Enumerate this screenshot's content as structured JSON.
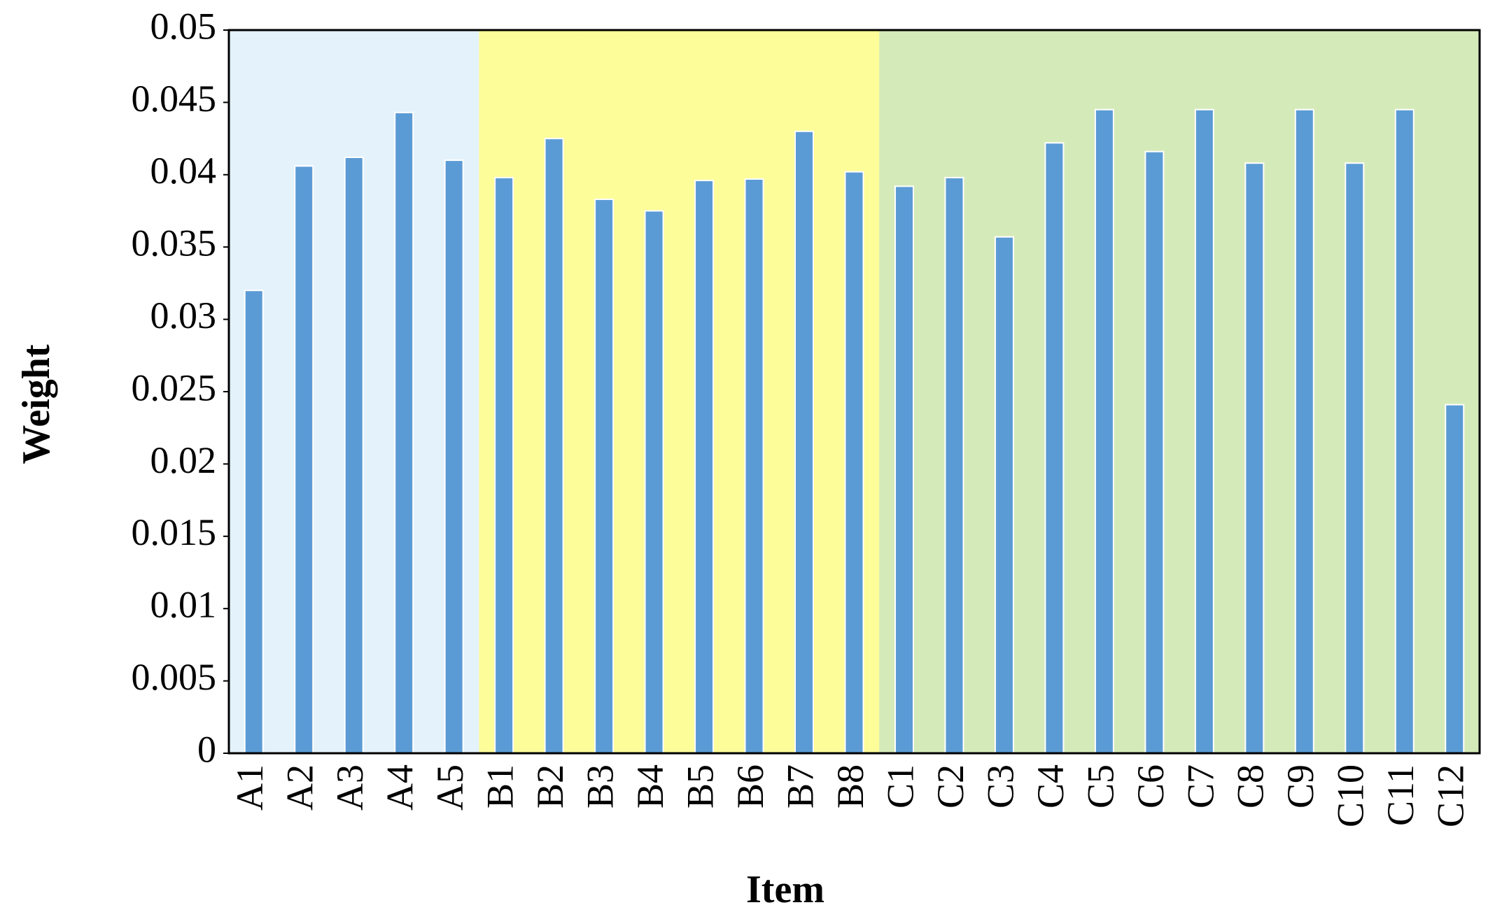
{
  "chart_data": {
    "type": "bar",
    "x_label": "Item",
    "y_label": "Weight",
    "categories": [
      "A1",
      "A2",
      "A3",
      "A4",
      "A5",
      "B1",
      "B2",
      "B3",
      "B4",
      "B5",
      "B6",
      "B7",
      "B8",
      "C1",
      "C2",
      "C3",
      "C4",
      "C5",
      "C6",
      "C7",
      "C8",
      "C9",
      "C10",
      "C11",
      "C12"
    ],
    "values": [
      0.032,
      0.0406,
      0.0412,
      0.0443,
      0.041,
      0.0398,
      0.0425,
      0.0383,
      0.0375,
      0.0396,
      0.0397,
      0.043,
      0.0402,
      0.0392,
      0.0398,
      0.0357,
      0.0422,
      0.0445,
      0.0416,
      0.0445,
      0.0408,
      0.0445,
      0.0408,
      0.0445,
      0.0241
    ],
    "color": "#5b9bd5",
    "background_colors": [
      "#e3f2fb",
      "#e3f2fb",
      "#e3f2fb",
      "#e3f2fb",
      "#e3f2fb",
      "#fdfd99",
      "#fdfd99",
      "#fdfd99",
      "#fdfd99",
      "#fdfd99",
      "#fdfd99",
      "#fdfd99",
      "#fdfd99",
      "#d5eab9",
      "#d5eab9",
      "#d5eab9",
      "#d5eab9",
      "#d5eab9",
      "#d5eab9",
      "#d5eab9",
      "#d5eab9",
      "#d5eab9",
      "#d5eab9",
      "#d5eab9",
      "#d5eab9"
    ],
    "ylim": [
      0,
      0.05
    ],
    "yticks": [
      0,
      0.005,
      0.01,
      0.015,
      0.02,
      0.025,
      0.03,
      0.035,
      0.04,
      0.045,
      0.05
    ],
    "grid": false
  }
}
